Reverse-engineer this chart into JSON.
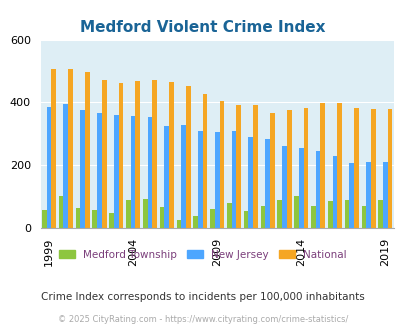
{
  "title": "Medford Violent Crime Index",
  "title_color": "#1a6496",
  "years": [
    1999,
    2000,
    2001,
    2002,
    2003,
    2004,
    2005,
    2006,
    2007,
    2008,
    2009,
    2010,
    2011,
    2012,
    2013,
    2014,
    2015,
    2016,
    2017,
    2018,
    2019
  ],
  "medford": [
    55,
    100,
    62,
    55,
    47,
    88,
    93,
    65,
    25,
    37,
    60,
    80,
    53,
    68,
    88,
    100,
    70,
    85,
    87,
    70,
    88
  ],
  "nj": [
    385,
    395,
    375,
    365,
    358,
    355,
    353,
    325,
    328,
    310,
    305,
    310,
    290,
    283,
    262,
    254,
    244,
    230,
    207,
    209,
    210
  ],
  "national": [
    507,
    507,
    497,
    470,
    460,
    468,
    470,
    465,
    453,
    428,
    404,
    390,
    390,
    365,
    375,
    383,
    398,
    398,
    383,
    379,
    379
  ],
  "medford_color": "#8dc63f",
  "nj_color": "#4da6ff",
  "national_color": "#f5a623",
  "bg_color": "#deeef5",
  "ylim": [
    0,
    600
  ],
  "yticks": [
    0,
    200,
    400,
    600
  ],
  "subtitle": "Crime Index corresponds to incidents per 100,000 inhabitants",
  "footer": "© 2025 CityRating.com - https://www.cityrating.com/crime-statistics/",
  "legend_labels": [
    "Medford Township",
    "New Jersey",
    "National"
  ],
  "xlabel_ticks": [
    1999,
    2004,
    2009,
    2014,
    2019
  ]
}
